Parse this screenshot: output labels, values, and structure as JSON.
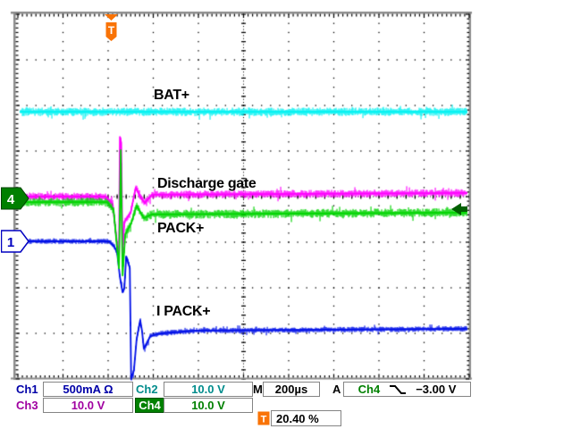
{
  "scope": {
    "trace_labels": {
      "bat_plus": "BAT+",
      "discharge_gate": "Discharge gate",
      "pack_plus": "PACK+",
      "i_pack_plus": "I PACK+"
    },
    "markers": {
      "ch4_ground_label": "4",
      "ch1_ground_label": "1",
      "trigger_flag_label": "T",
      "trigger_icon_label": "T"
    },
    "readouts": {
      "ch1_name": "Ch1",
      "ch1_scale": "500mA Ω",
      "ch1_color": "#0000a8",
      "ch2_name": "Ch2",
      "ch2_scale": "10.0 V",
      "ch2_color": "#008c8c",
      "ch3_name": "Ch3",
      "ch3_scale": "10.0 V",
      "ch3_color": "#a000a0",
      "ch4_name": "Ch4",
      "ch4_scale": "10.0 V",
      "ch4_color": "#008000",
      "timebase_label": "M",
      "timebase_value": "200µs",
      "acquisition_label": "A",
      "trigger_source": "Ch4",
      "trigger_level": "−3.00 V",
      "trigger_position": "20.40 %"
    },
    "accent_orange": "#f97306"
  },
  "chart_data": {
    "type": "line",
    "x_divisions": 10,
    "y_divisions": 8,
    "time_per_division": "200µs",
    "grid": "dotted",
    "trigger": {
      "source": "Ch4",
      "slope": "falling",
      "level": "−3.00 V",
      "horizontal_position_pct": 20.4
    },
    "series": [
      {
        "name": "BAT+",
        "channel": "Ch2",
        "volts_per_div": "10.0 V",
        "color": "#00f2f2",
        "noise_div": 0.085,
        "points_div": [
          [
            0.04,
            2.14
          ],
          [
            9.96,
            2.14
          ]
        ]
      },
      {
        "name": "Discharge gate",
        "channel": "Ch3",
        "volts_per_div": "10.0 V",
        "color": "#ff00ff",
        "noise_div": 0.08,
        "points_div": [
          [
            0.04,
            4.0
          ],
          [
            1.94,
            4.0
          ],
          [
            2.1,
            4.16
          ],
          [
            2.24,
            5.41
          ],
          [
            2.26,
            2.69
          ],
          [
            2.29,
            2.82
          ],
          [
            2.32,
            5.27
          ],
          [
            2.36,
            4.55
          ],
          [
            2.5,
            4.35
          ],
          [
            2.61,
            3.8
          ],
          [
            2.71,
            4.0
          ],
          [
            2.81,
            4.14
          ],
          [
            2.97,
            3.96
          ],
          [
            9.96,
            3.92
          ]
        ]
      },
      {
        "name": "I PACK+",
        "channel": "Ch1",
        "amps_per_div": "500mA",
        "color": "#0010e8",
        "noise_div": 0.055,
        "points_div": [
          [
            0.04,
            4.98
          ],
          [
            2.02,
            4.98
          ],
          [
            2.14,
            5.1
          ],
          [
            2.2,
            5.24
          ],
          [
            2.26,
            5.76
          ],
          [
            2.32,
            6.1
          ],
          [
            2.36,
            6.0
          ],
          [
            2.4,
            5.31
          ],
          [
            2.44,
            5.43
          ],
          [
            2.48,
            5.57
          ],
          [
            2.51,
            8.0
          ],
          [
            2.57,
            7.82
          ],
          [
            2.63,
            7.14
          ],
          [
            2.71,
            6.71
          ],
          [
            2.75,
            6.94
          ],
          [
            2.79,
            7.33
          ],
          [
            2.85,
            7.24
          ],
          [
            2.93,
            7.06
          ],
          [
            3.17,
            7.0
          ],
          [
            3.96,
            6.94
          ],
          [
            9.96,
            6.9
          ]
        ]
      },
      {
        "name": "PACK+",
        "channel": "Ch4",
        "volts_per_div": "10.0 V",
        "color": "#00d400",
        "noise_div": 0.09,
        "points_div": [
          [
            0.04,
            4.12
          ],
          [
            1.98,
            4.12
          ],
          [
            2.12,
            4.29
          ],
          [
            2.24,
            5.57
          ],
          [
            2.28,
            2.98
          ],
          [
            2.32,
            5.73
          ],
          [
            2.38,
            4.82
          ],
          [
            2.51,
            4.59
          ],
          [
            2.63,
            4.2
          ],
          [
            2.79,
            4.47
          ],
          [
            2.97,
            4.39
          ],
          [
            9.96,
            4.35
          ]
        ]
      }
    ]
  }
}
